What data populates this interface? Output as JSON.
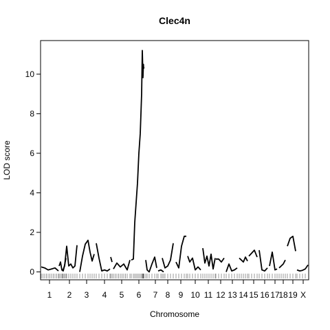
{
  "chart_data": {
    "type": "line",
    "title": "Clec4n",
    "xlabel": "Chromosome",
    "ylabel": "LOD score",
    "ylim": [
      -0.4,
      11.7
    ],
    "yticks": [
      0,
      2,
      4,
      6,
      8,
      10
    ],
    "grid": false,
    "legend": "none",
    "line_color": "#000000",
    "chromosomes": [
      {
        "label": "1",
        "x": [
          60,
          65,
          70,
          75,
          80,
          85
        ],
        "lod": [
          0.25,
          0.2,
          0.1,
          0.15,
          0.2,
          0.05
        ]
      },
      {
        "label": "",
        "x": [
          86,
          88,
          90,
          92,
          94,
          96
        ],
        "lod": [
          0.3,
          0.5,
          0.1,
          0.05,
          0.35,
          0.7
        ]
      },
      {
        "label": "2",
        "x": [
          91,
          94,
          97,
          100,
          103,
          106,
          109,
          112
        ],
        "lod": [
          0.05,
          0.3,
          1.3,
          0.3,
          0.4,
          0.2,
          0.3,
          1.35
        ]
      },
      {
        "label": "3",
        "x": [
          116,
          120,
          124,
          128,
          131,
          134,
          137
        ],
        "lod": [
          0.0,
          0.8,
          1.4,
          1.6,
          1.0,
          0.55,
          0.9
        ]
      },
      {
        "label": "4",
        "x": [
          140,
          144,
          148,
          152,
          156,
          160
        ],
        "lod": [
          1.45,
          0.7,
          0.05,
          0.1,
          0.05,
          0.15
        ]
      },
      {
        "label": "",
        "x": [
          161,
          163
        ],
        "lod": [
          0.75,
          0.5
        ]
      },
      {
        "label": "5",
        "x": [
          165,
          170,
          175,
          180,
          185,
          189
        ],
        "lod": [
          0.15,
          0.45,
          0.25,
          0.4,
          0.1,
          0.6
        ]
      },
      {
        "label": "6",
        "x": [
          191,
          194,
          196,
          198,
          200,
          202,
          204,
          206,
          207,
          208
        ],
        "lod": [
          0.6,
          0.65,
          2.5,
          3.5,
          4.5,
          6.0,
          7.0,
          9.0,
          11.2,
          9.8
        ]
      },
      {
        "label": "",
        "x": [
          208,
          208.6,
          209,
          209.4
        ],
        "lod": [
          9.9,
          10.5,
          10.3,
          10.35
        ]
      },
      {
        "label": "",
        "x": [
          212,
          214,
          217,
          221,
          225,
          228
        ],
        "lod": [
          0.6,
          0.1,
          0.0,
          0.4,
          0.75,
          0.2
        ]
      },
      {
        "label": "7",
        "x": [
          230,
          234,
          238
        ],
        "lod": [
          0.05,
          0.1,
          0.0
        ]
      },
      {
        "label": "8",
        "x": [
          236,
          240,
          244,
          248,
          252
        ],
        "lod": [
          0.7,
          0.2,
          0.3,
          0.6,
          1.45
        ]
      },
      {
        "label": "9",
        "x": [
          256,
          260,
          264,
          268,
          271
        ],
        "lod": [
          0.5,
          0.2,
          1.3,
          1.8,
          1.8
        ]
      },
      {
        "label": "10",
        "x": [
          273,
          276,
          280,
          284,
          288,
          292
        ],
        "lod": [
          0.8,
          0.5,
          0.7,
          0.1,
          0.25,
          0.1
        ]
      },
      {
        "label": "11",
        "x": [
          295,
          298,
          301,
          304,
          307,
          310,
          313
        ],
        "lod": [
          1.2,
          0.45,
          0.8,
          0.3,
          0.9,
          0.15,
          0.7
        ]
      },
      {
        "label": "12",
        "x": [
          314,
          318,
          322,
          326
        ],
        "lod": [
          0.65,
          0.65,
          0.5,
          0.7
        ]
      },
      {
        "label": "13",
        "x": [
          329,
          333,
          337,
          341,
          345
        ],
        "lod": [
          0.0,
          0.4,
          0.05,
          0.1,
          0.2
        ]
      },
      {
        "label": "14",
        "x": [
          348,
          351,
          354,
          357,
          360
        ],
        "lod": [
          0.7,
          0.6,
          0.5,
          0.75,
          0.55
        ]
      },
      {
        "label": "15",
        "x": [
          362,
          366,
          370,
          374
        ],
        "lod": [
          0.8,
          0.95,
          1.1,
          0.75
        ]
      },
      {
        "label": "16",
        "x": [
          377,
          381,
          385,
          389
        ],
        "lod": [
          1.1,
          0.1,
          0.05,
          0.2
        ]
      },
      {
        "label": "17",
        "x": [
          392,
          396,
          400,
          403
        ],
        "lod": [
          0.3,
          1.0,
          0.1,
          0.15
        ]
      },
      {
        "label": "18",
        "x": [
          406,
          409,
          412,
          415
        ],
        "lod": [
          0.2,
          0.3,
          0.4,
          0.6
        ]
      },
      {
        "label": "19",
        "x": [
          418,
          422,
          426,
          430
        ],
        "lod": [
          1.3,
          1.7,
          1.8,
          1.05
        ]
      },
      {
        "label": "X",
        "x": [
          432,
          436,
          440,
          444,
          448
        ],
        "lod": [
          0.1,
          0.05,
          0.08,
          0.15,
          0.35
        ]
      }
    ],
    "chromosome_label_x": [
      72,
      101,
      126,
      152,
      177,
      202,
      226,
      244,
      263,
      284,
      303,
      321,
      338,
      354,
      369,
      385,
      400,
      412,
      426,
      441
    ],
    "chromosome_labels": [
      "1",
      "2",
      "3",
      "4",
      "5",
      "6",
      "7",
      "8",
      "9",
      "10",
      "11",
      "12",
      "13",
      "14",
      "15",
      "16",
      "17",
      "18",
      "19",
      "X"
    ]
  }
}
